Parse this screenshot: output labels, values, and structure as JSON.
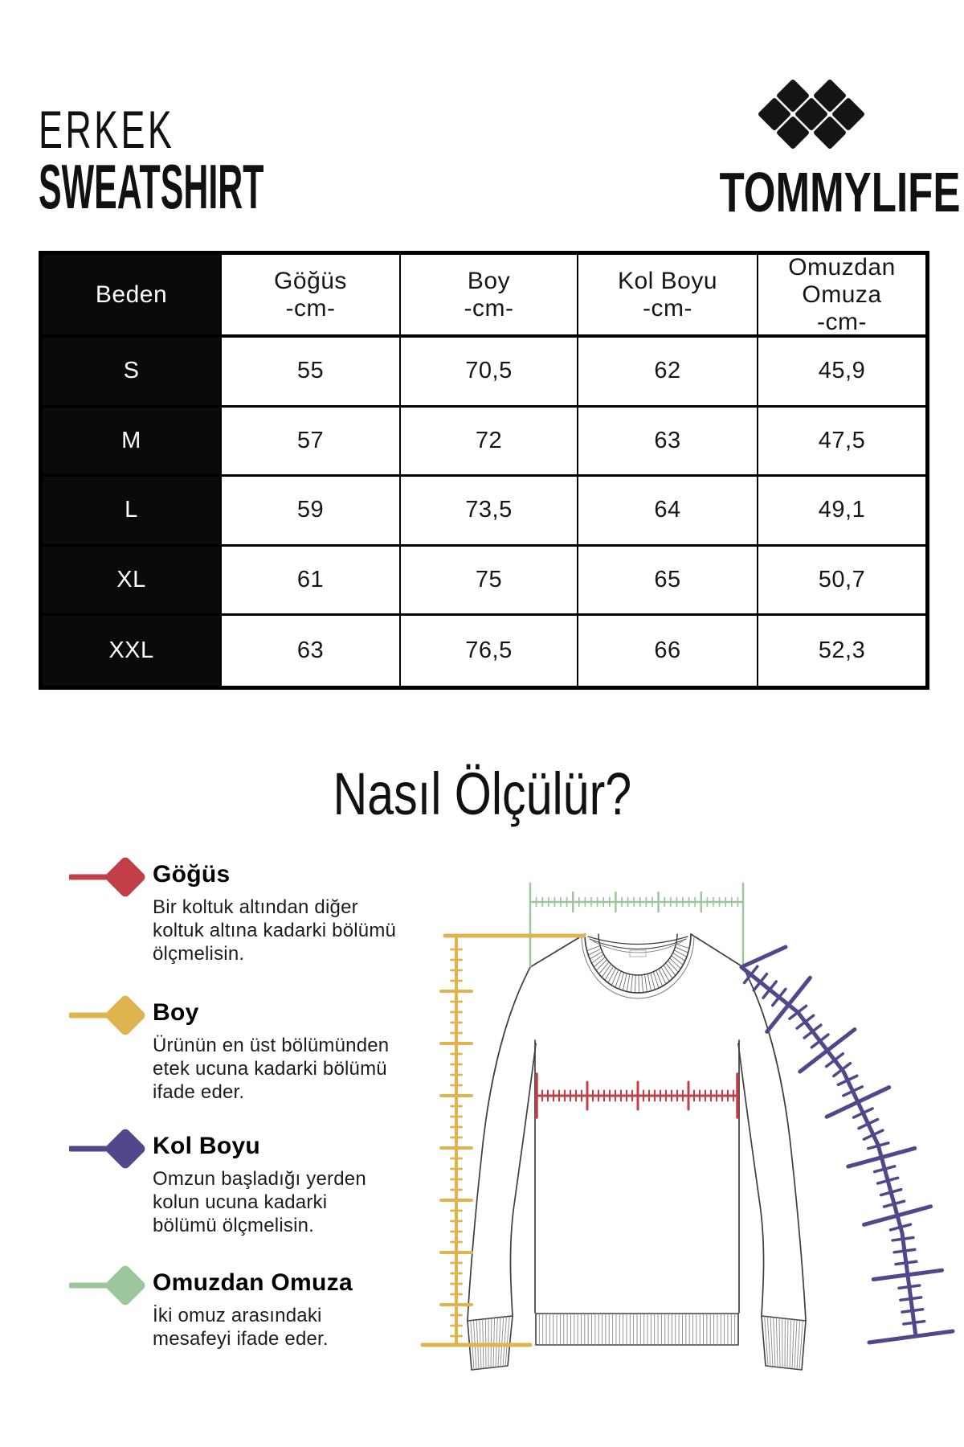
{
  "header": {
    "category": "ERKEK",
    "product": "SWEATSHIRT",
    "brand": "TOMMYLIFE"
  },
  "size_table": {
    "columns": [
      {
        "label": "Beden",
        "unit": ""
      },
      {
        "label": "Göğüs",
        "unit": "-cm-"
      },
      {
        "label": "Boy",
        "unit": "-cm-"
      },
      {
        "label": "Kol Boyu",
        "unit": "-cm-"
      },
      {
        "label": "Omuzdan Omuza",
        "unit": "-cm-"
      }
    ],
    "rows": [
      {
        "size": "S",
        "values": [
          "55",
          "70,5",
          "62",
          "45,9"
        ]
      },
      {
        "size": "M",
        "values": [
          "57",
          "72",
          "63",
          "47,5"
        ]
      },
      {
        "size": "L",
        "values": [
          "59",
          "73,5",
          "64",
          "49,1"
        ]
      },
      {
        "size": "XL",
        "values": [
          "61",
          "75",
          "65",
          "50,7"
        ]
      },
      {
        "size": "XXL",
        "values": [
          "63",
          "76,5",
          "66",
          "52,3"
        ]
      }
    ]
  },
  "how_to": {
    "title": "Nasıl Ölçülür?",
    "items": [
      {
        "name": "Göğüs",
        "color": "#c13f46",
        "lines": [
          "Bir koltuk altından diğer",
          "koltuk altına kadarki bölümü",
          "ölçmelisin."
        ]
      },
      {
        "name": "Boy",
        "color": "#dfb44f",
        "lines": [
          "Ürünün en üst bölümünden",
          "etek ucuna kadarki bölümü",
          "ifade eder."
        ]
      },
      {
        "name": "Kol Boyu",
        "color": "#53478b",
        "lines": [
          "Omzun başladığı yerden",
          "kolun ucuna kadarki",
          "bölümü ölçmelisin."
        ]
      },
      {
        "name": "Omuzdan Omuza",
        "color": "#9cc79c",
        "lines": [
          "İki omuz arasındaki",
          "mesafeyi ifade eder."
        ]
      }
    ]
  }
}
